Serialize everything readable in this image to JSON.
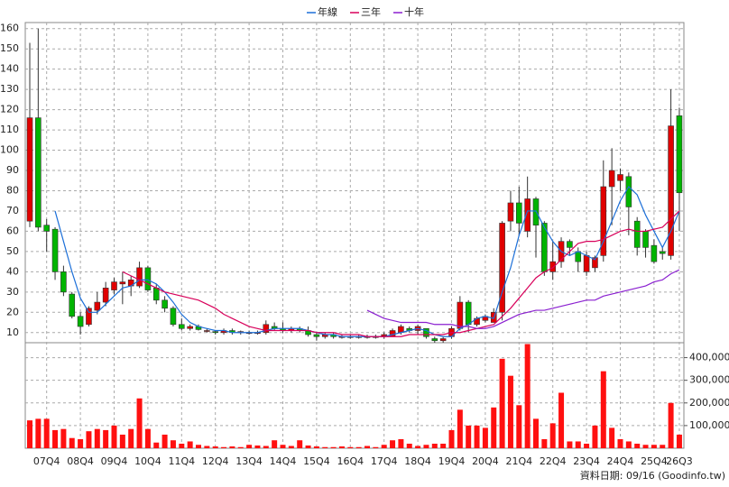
{
  "chart_data": [
    {
      "type": "candlestick",
      "categories": [
        null,
        null,
        "07Q4",
        null,
        null,
        null,
        "08Q4",
        null,
        null,
        null,
        "09Q4",
        null,
        null,
        null,
        "10Q4",
        null,
        null,
        null,
        "11Q4",
        null,
        null,
        null,
        "12Q4",
        null,
        null,
        null,
        "13Q4",
        null,
        null,
        null,
        "14Q4",
        null,
        null,
        null,
        "15Q4",
        null,
        null,
        null,
        "16Q4",
        null,
        null,
        null,
        "17Q4",
        null,
        null,
        null,
        "18Q4",
        null,
        null,
        null,
        "19Q4",
        null,
        null,
        null,
        "20Q4",
        null,
        null,
        null,
        "21Q4",
        null,
        null,
        null,
        "22Q4",
        null,
        null,
        null,
        "23Q4",
        null,
        null,
        null,
        "24Q4",
        null,
        null,
        null,
        "25Q4",
        null,
        null,
        "26Q3"
      ],
      "open": [
        65,
        116,
        63,
        61,
        40,
        29,
        18,
        14,
        21,
        25,
        31,
        34,
        33,
        33,
        42,
        32,
        26,
        22,
        14,
        12,
        13,
        11,
        10.5,
        10,
        11,
        10,
        10,
        10,
        10,
        13,
        12,
        11,
        12,
        11,
        9,
        8,
        9,
        8,
        8,
        8,
        8,
        8,
        8,
        8,
        10,
        12,
        11,
        12,
        7,
        6,
        8,
        12,
        25,
        14,
        16,
        15,
        20,
        65,
        74,
        60,
        76,
        64,
        40,
        45,
        55,
        50,
        40,
        42,
        48,
        82,
        85,
        87,
        65,
        60,
        53,
        50,
        48,
        117
      ],
      "high": [
        153,
        160,
        66,
        62,
        43,
        30,
        20,
        23,
        30,
        35,
        37,
        40,
        38,
        45,
        43,
        34,
        28,
        23,
        17,
        14,
        14,
        12,
        11,
        12,
        12,
        11,
        11,
        11,
        16,
        15,
        15,
        13,
        13,
        13,
        10,
        10,
        10,
        9,
        9,
        9,
        9,
        9,
        10,
        12,
        14,
        13,
        14,
        12,
        8,
        8,
        13,
        28,
        26,
        18,
        19,
        22,
        65,
        80,
        82,
        87,
        77,
        65,
        55,
        57,
        56,
        52,
        50,
        48,
        95,
        101,
        91,
        89,
        67,
        61,
        56,
        52,
        130,
        121
      ],
      "low": [
        62,
        60,
        50,
        36,
        28,
        17,
        9,
        13,
        19,
        23,
        29,
        24,
        28,
        32,
        30,
        24,
        20,
        13,
        11,
        11,
        11,
        10,
        9,
        9,
        9,
        9,
        9,
        9,
        9,
        11,
        10,
        10,
        10,
        8,
        6,
        7,
        7,
        7,
        7,
        7,
        7,
        7,
        7,
        8,
        9,
        10,
        9,
        7,
        5,
        5,
        7,
        11,
        10,
        13,
        15,
        15,
        16,
        60,
        58,
        57,
        47,
        38,
        36,
        42,
        48,
        40,
        38,
        40,
        45,
        63,
        80,
        58,
        48,
        47,
        44,
        46,
        46,
        60
      ],
      "close": [
        116,
        62,
        60,
        40,
        30,
        18,
        13,
        22,
        25,
        32,
        35,
        35,
        36,
        42,
        31,
        26,
        22,
        14,
        12,
        13,
        11.5,
        11,
        10,
        11,
        10,
        10.5,
        10,
        10,
        14,
        12,
        11,
        12,
        11,
        9,
        8,
        9,
        8,
        8,
        8,
        8,
        8,
        8,
        9,
        11,
        13,
        11,
        13,
        8,
        6,
        7,
        12,
        25,
        14,
        17,
        18,
        20,
        64,
        74,
        64,
        76,
        63,
        40,
        45,
        55,
        52,
        45,
        48,
        47,
        82,
        90,
        88,
        72,
        52,
        52,
        45,
        49,
        112,
        79
      ],
      "up_color": "#e00000",
      "down_color": "#00b400",
      "series": [
        {
          "name": "年線",
          "color": "#1c6fd8",
          "values": [
            null,
            null,
            null,
            70,
            55,
            40,
            27,
            20,
            20,
            24,
            28,
            32,
            33,
            36,
            36,
            34,
            30,
            25,
            19,
            15,
            13,
            12,
            11,
            11,
            10,
            10,
            10,
            10,
            11,
            12,
            12,
            12,
            12,
            11,
            10,
            9,
            9,
            8,
            8,
            8,
            8,
            8,
            8,
            9,
            10,
            11,
            12,
            11,
            9,
            8,
            8,
            12,
            14,
            17,
            18,
            17,
            30,
            42,
            58,
            70,
            70,
            62,
            55,
            50,
            48,
            50,
            48,
            46,
            55,
            65,
            75,
            82,
            78,
            68,
            60,
            52,
            60,
            70
          ]
        },
        {
          "name": "三年",
          "color": "#d8005a",
          "values": [
            null,
            null,
            null,
            null,
            null,
            null,
            null,
            null,
            null,
            null,
            null,
            40,
            38,
            36,
            34,
            32,
            30,
            29,
            28,
            27,
            26,
            24,
            22,
            19,
            17,
            15,
            13,
            12,
            11,
            11,
            11,
            11,
            11,
            11,
            10,
            10,
            10,
            9,
            9,
            9,
            8,
            8,
            8,
            8,
            8,
            9,
            9,
            9,
            9,
            9,
            10,
            10,
            11,
            12,
            13,
            14,
            18,
            22,
            27,
            32,
            37,
            40,
            42,
            46,
            50,
            54,
            55,
            55,
            56,
            58,
            60,
            61,
            60,
            60,
            61,
            62,
            66,
            70
          ]
        },
        {
          "name": "十年",
          "color": "#8a1fd0",
          "values": [
            null,
            null,
            null,
            null,
            null,
            null,
            null,
            null,
            null,
            null,
            null,
            null,
            null,
            null,
            null,
            null,
            null,
            null,
            null,
            null,
            null,
            null,
            null,
            null,
            null,
            null,
            null,
            null,
            null,
            null,
            null,
            null,
            null,
            null,
            null,
            null,
            null,
            null,
            null,
            null,
            21,
            19,
            17,
            16,
            15,
            15,
            15,
            15,
            14,
            14,
            14,
            13,
            13,
            12,
            12,
            13,
            15,
            17,
            19,
            20,
            21,
            21,
            22,
            23,
            24,
            25,
            26,
            26,
            28,
            29,
            30,
            31,
            32,
            33,
            35,
            36,
            39,
            41
          ]
        }
      ],
      "ylim": [
        5,
        163
      ],
      "yticks": [
        10,
        20,
        30,
        40,
        50,
        60,
        70,
        80,
        90,
        100,
        110,
        120,
        130,
        140,
        150,
        160
      ],
      "grid": true,
      "legend": "top"
    },
    {
      "type": "bar",
      "values": [
        123000,
        130000,
        130000,
        80000,
        85000,
        45000,
        40000,
        75000,
        85000,
        80000,
        100000,
        60000,
        85000,
        220000,
        85000,
        25000,
        60000,
        35000,
        20000,
        30000,
        15000,
        10000,
        8000,
        5000,
        8000,
        5000,
        15000,
        12000,
        10000,
        35000,
        15000,
        10000,
        35000,
        12000,
        8000,
        5000,
        5000,
        8000,
        5000,
        5000,
        10000,
        5000,
        15000,
        35000,
        40000,
        20000,
        10000,
        15000,
        20000,
        20000,
        80000,
        170000,
        100000,
        100000,
        90000,
        180000,
        395000,
        320000,
        190000,
        460000,
        130000,
        40000,
        110000,
        245000,
        30000,
        30000,
        20000,
        100000,
        340000,
        90000,
        40000,
        30000,
        20000,
        15000,
        15000,
        15000,
        200000,
        60000
      ],
      "color": "#ff1010",
      "ylim": [
        0,
        466000
      ],
      "yticks": [
        {
          "value": 100000,
          "label": "100,000"
        },
        {
          "value": 200000,
          "label": "200,000"
        },
        {
          "value": 300000,
          "label": "300,000"
        },
        {
          "value": 400000,
          "label": "400,000"
        }
      ],
      "axis_side": "right",
      "grid": true
    }
  ],
  "note": "資料日期: 09/16  (Goodinfo.tw)"
}
